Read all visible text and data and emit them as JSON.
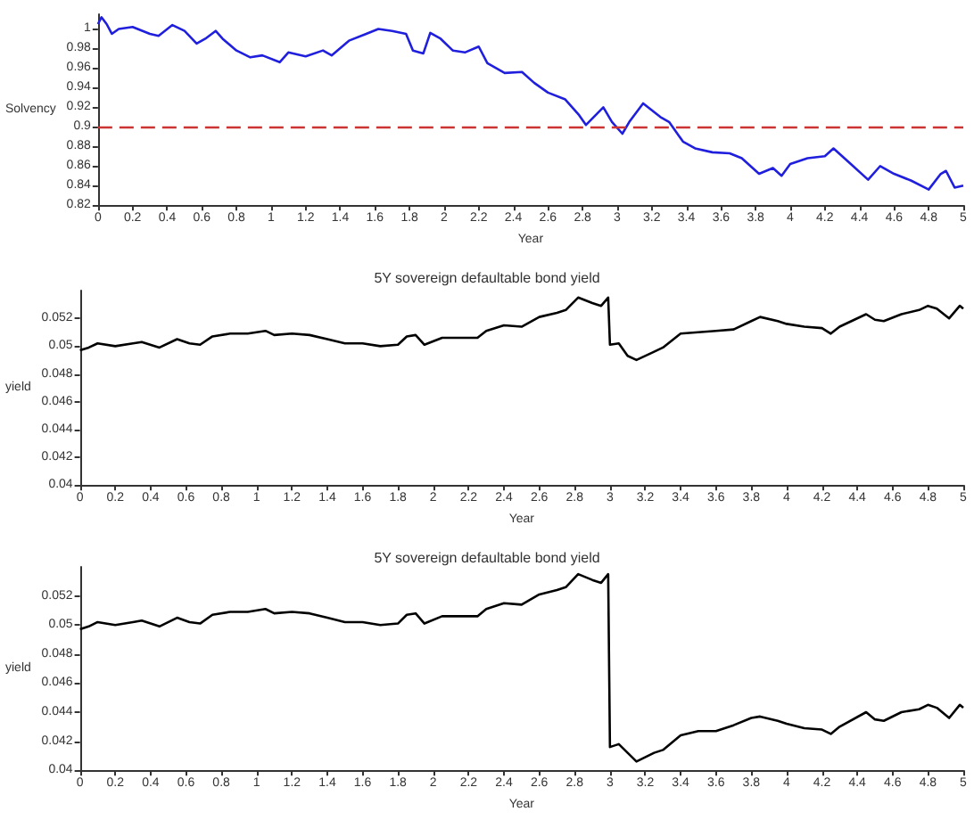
{
  "chart_data": [
    {
      "type": "line",
      "xlabel": "Year",
      "ylabel": "Solvency",
      "grid": false,
      "marker": "none",
      "line_style": "solid",
      "xlim": [
        0,
        5
      ],
      "xticks": [
        0,
        0.2,
        0.4,
        0.6,
        0.8,
        1,
        1.2,
        1.4,
        1.6,
        1.8,
        2,
        2.2,
        2.4,
        2.6,
        2.8,
        3,
        3.2,
        3.4,
        3.6,
        3.8,
        4,
        4.2,
        4.4,
        4.6,
        4.8,
        5
      ],
      "ylim": [
        0.82,
        1.015
      ],
      "yticks": [
        0.82,
        0.84,
        0.86,
        0.88,
        0.9,
        0.92,
        0.94,
        0.96,
        0.98,
        1
      ],
      "ref_lines": [
        {
          "axis": "y",
          "value": 0.9,
          "color": "#cc3333",
          "line_style": "dashed"
        }
      ],
      "series": [
        {
          "color": "#1f1fdd",
          "x": [
            0,
            0.02,
            0.05,
            0.08,
            0.12,
            0.2,
            0.3,
            0.35,
            0.43,
            0.5,
            0.57,
            0.62,
            0.68,
            0.72,
            0.8,
            0.88,
            0.95,
            1.05,
            1.1,
            1.2,
            1.3,
            1.35,
            1.45,
            1.55,
            1.62,
            1.7,
            1.78,
            1.82,
            1.88,
            1.92,
            1.98,
            2.05,
            2.12,
            2.2,
            2.25,
            2.35,
            2.45,
            2.52,
            2.6,
            2.7,
            2.78,
            2.82,
            2.92,
            2.97,
            3.03,
            3.07,
            3.15,
            3.25,
            3.3,
            3.38,
            3.45,
            3.55,
            3.65,
            3.72,
            3.82,
            3.9,
            3.95,
            4,
            4.1,
            4.2,
            4.25,
            4.35,
            4.45,
            4.52,
            4.6,
            4.7,
            4.8,
            4.87,
            4.9,
            4.95,
            5
          ],
          "values": [
            1.005,
            1.012,
            1.005,
            0.995,
            1,
            1.002,
            0.995,
            0.993,
            1.004,
            0.998,
            0.985,
            0.99,
            0.998,
            0.99,
            0.978,
            0.971,
            0.973,
            0.966,
            0.976,
            0.972,
            0.978,
            0.973,
            0.988,
            0.995,
            1,
            0.998,
            0.995,
            0.978,
            0.975,
            0.996,
            0.99,
            0.978,
            0.976,
            0.982,
            0.965,
            0.955,
            0.956,
            0.945,
            0.935,
            0.928,
            0.912,
            0.902,
            0.92,
            0.905,
            0.893,
            0.905,
            0.924,
            0.91,
            0.905,
            0.885,
            0.878,
            0.874,
            0.873,
            0.868,
            0.852,
            0.858,
            0.85,
            0.862,
            0.868,
            0.87,
            0.878,
            0.862,
            0.846,
            0.86,
            0.852,
            0.845,
            0.836,
            0.852,
            0.855,
            0.838,
            0.84
          ]
        }
      ]
    },
    {
      "type": "line",
      "title": "5Y sovereign defaultable bond yield",
      "xlabel": "Year",
      "ylabel": "yield",
      "grid": false,
      "marker": "none",
      "line_style": "solid",
      "xlim": [
        0,
        5
      ],
      "xticks": [
        0,
        0.2,
        0.4,
        0.6,
        0.8,
        1,
        1.2,
        1.4,
        1.6,
        1.8,
        2,
        2.2,
        2.4,
        2.6,
        2.8,
        3,
        3.2,
        3.4,
        3.6,
        3.8,
        4,
        4.2,
        4.4,
        4.6,
        4.8,
        5
      ],
      "ylim": [
        0.04,
        0.054
      ],
      "yticks": [
        0.04,
        0.042,
        0.044,
        0.046,
        0.048,
        0.05,
        0.052
      ],
      "series": [
        {
          "color": "#000000",
          "x": [
            0,
            0.05,
            0.1,
            0.2,
            0.3,
            0.35,
            0.45,
            0.55,
            0.62,
            0.68,
            0.75,
            0.85,
            0.95,
            1.05,
            1.1,
            1.2,
            1.3,
            1.4,
            1.5,
            1.6,
            1.7,
            1.8,
            1.85,
            1.9,
            1.95,
            2.05,
            2.15,
            2.25,
            2.3,
            2.4,
            2.5,
            2.6,
            2.7,
            2.75,
            2.82,
            2.9,
            2.95,
            2.99,
            3,
            3.05,
            3.1,
            3.15,
            3.25,
            3.3,
            3.4,
            3.5,
            3.6,
            3.7,
            3.8,
            3.85,
            3.95,
            4,
            4.1,
            4.2,
            4.25,
            4.3,
            4.45,
            4.5,
            4.55,
            4.65,
            4.75,
            4.8,
            4.85,
            4.92,
            4.98,
            5
          ],
          "values": [
            0.0497,
            0.0499,
            0.0502,
            0.05,
            0.0502,
            0.0503,
            0.0499,
            0.0505,
            0.0502,
            0.0501,
            0.0507,
            0.0509,
            0.0509,
            0.0511,
            0.0508,
            0.0509,
            0.0508,
            0.0505,
            0.0502,
            0.0502,
            0.05,
            0.0501,
            0.0507,
            0.0508,
            0.0501,
            0.0506,
            0.0506,
            0.0506,
            0.0511,
            0.0515,
            0.0514,
            0.0521,
            0.0524,
            0.0526,
            0.0535,
            0.0531,
            0.0529,
            0.0535,
            0.0501,
            0.0502,
            0.0493,
            0.049,
            0.0496,
            0.0499,
            0.0509,
            0.051,
            0.0511,
            0.0512,
            0.0518,
            0.0521,
            0.0518,
            0.0516,
            0.0514,
            0.0513,
            0.0509,
            0.0514,
            0.0523,
            0.0519,
            0.0518,
            0.0523,
            0.0526,
            0.0529,
            0.0527,
            0.052,
            0.0529,
            0.0527
          ]
        }
      ]
    },
    {
      "type": "line",
      "title": "5Y sovereign defaultable bond yield",
      "xlabel": "Year",
      "ylabel": "yield",
      "grid": false,
      "marker": "none",
      "line_style": "solid",
      "xlim": [
        0,
        5
      ],
      "xticks": [
        0,
        0.2,
        0.4,
        0.6,
        0.8,
        1,
        1.2,
        1.4,
        1.6,
        1.8,
        2,
        2.2,
        2.4,
        2.6,
        2.8,
        3,
        3.2,
        3.4,
        3.6,
        3.8,
        4,
        4.2,
        4.4,
        4.6,
        4.8,
        5
      ],
      "ylim": [
        0.04,
        0.054
      ],
      "yticks": [
        0.04,
        0.042,
        0.044,
        0.046,
        0.048,
        0.05,
        0.052
      ],
      "series": [
        {
          "color": "#000000",
          "x": [
            0,
            0.05,
            0.1,
            0.2,
            0.3,
            0.35,
            0.45,
            0.55,
            0.62,
            0.68,
            0.75,
            0.85,
            0.95,
            1.05,
            1.1,
            1.2,
            1.3,
            1.4,
            1.5,
            1.6,
            1.7,
            1.8,
            1.85,
            1.9,
            1.95,
            2.05,
            2.15,
            2.25,
            2.3,
            2.4,
            2.5,
            2.6,
            2.7,
            2.75,
            2.82,
            2.9,
            2.95,
            2.99,
            3,
            3.05,
            3.1,
            3.15,
            3.25,
            3.3,
            3.4,
            3.5,
            3.6,
            3.7,
            3.8,
            3.85,
            3.95,
            4,
            4.1,
            4.2,
            4.25,
            4.3,
            4.45,
            4.5,
            4.55,
            4.65,
            4.75,
            4.8,
            4.85,
            4.92,
            4.98,
            5
          ],
          "values": [
            0.0497,
            0.0499,
            0.0502,
            0.05,
            0.0502,
            0.0503,
            0.0499,
            0.0505,
            0.0502,
            0.0501,
            0.0507,
            0.0509,
            0.0509,
            0.0511,
            0.0508,
            0.0509,
            0.0508,
            0.0505,
            0.0502,
            0.0502,
            0.05,
            0.0501,
            0.0507,
            0.0508,
            0.0501,
            0.0506,
            0.0506,
            0.0506,
            0.0511,
            0.0515,
            0.0514,
            0.0521,
            0.0524,
            0.0526,
            0.0535,
            0.0531,
            0.0529,
            0.0535,
            0.0416,
            0.0418,
            0.0412,
            0.0406,
            0.0412,
            0.0414,
            0.0424,
            0.0427,
            0.0427,
            0.0431,
            0.0436,
            0.0437,
            0.0434,
            0.0432,
            0.0429,
            0.0428,
            0.0425,
            0.043,
            0.044,
            0.0435,
            0.0434,
            0.044,
            0.0442,
            0.0445,
            0.0443,
            0.0436,
            0.0445,
            0.0443
          ]
        }
      ]
    }
  ]
}
